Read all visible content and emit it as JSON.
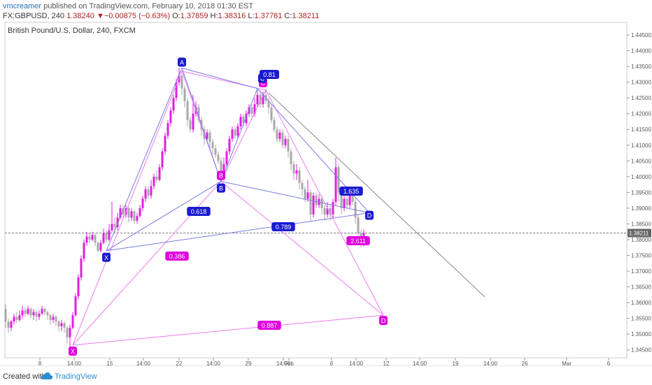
{
  "header": {
    "user": "vmcreamer",
    "published": "published on TradingView.com, February 10, 2018 01:30 EST",
    "symbol": "FX:GBPUSD, 240",
    "last": "1.38240",
    "change": "−0.00875 (−0.63%)",
    "open_label": "O:",
    "open": "1.37859",
    "high_label": "H:",
    "high": "1.38316",
    "low_label": "L:",
    "low": "1.37781",
    "close_label": "C:",
    "close": "1.38211"
  },
  "footer": {
    "created": "Created with",
    "brand": "TradingView"
  },
  "colors": {
    "bull": "#e01ee0",
    "bear": "#a8a8a8",
    "blue": "#1a1ad2",
    "pink": "#e000e0",
    "axis_text": "#555555",
    "grid": "#eeeeee"
  },
  "chart_data": {
    "type": "candlestick",
    "title": "British Pound/U.S. Dollar, 240, FXCM",
    "ylim": [
      1.3425,
      1.449
    ],
    "y_ticks": [
      "1.44500",
      "1.44000",
      "1.43500",
      "1.43000",
      "1.42500",
      "1.42000",
      "1.41500",
      "1.41000",
      "1.40500",
      "1.40000",
      "1.39500",
      "1.39000",
      "1.38500",
      "1.38000",
      "1.37500",
      "1.37000",
      "1.36500",
      "1.36000",
      "1.35500",
      "1.35000",
      "1.34500"
    ],
    "x_ticks": [
      "8",
      "14:00",
      "15",
      "14:00",
      "22",
      "14:00",
      "29",
      "14:00",
      "Feb",
      "6",
      "14:00",
      "12",
      "14:00",
      "19",
      "14:00",
      "26",
      "Mar",
      "6"
    ],
    "current_price": "1.38211",
    "candles": [
      {
        "o": 1.358,
        "c": 1.354,
        "h": 1.3595,
        "l": 1.352
      },
      {
        "o": 1.354,
        "c": 1.352,
        "h": 1.355,
        "l": 1.3505
      },
      {
        "o": 1.352,
        "c": 1.354,
        "h": 1.3545,
        "l": 1.351
      },
      {
        "o": 1.354,
        "c": 1.3555,
        "h": 1.3565,
        "l": 1.353
      },
      {
        "o": 1.3555,
        "c": 1.3545,
        "h": 1.357,
        "l": 1.3535
      },
      {
        "o": 1.3545,
        "c": 1.356,
        "h": 1.3575,
        "l": 1.354
      },
      {
        "o": 1.356,
        "c": 1.3575,
        "h": 1.359,
        "l": 1.355
      },
      {
        "o": 1.3575,
        "c": 1.3565,
        "h": 1.3585,
        "l": 1.3555
      },
      {
        "o": 1.3565,
        "c": 1.358,
        "h": 1.359,
        "l": 1.356
      },
      {
        "o": 1.358,
        "c": 1.356,
        "h": 1.3585,
        "l": 1.355
      },
      {
        "o": 1.356,
        "c": 1.357,
        "h": 1.358,
        "l": 1.3545
      },
      {
        "o": 1.357,
        "c": 1.3555,
        "h": 1.3575,
        "l": 1.354
      },
      {
        "o": 1.3555,
        "c": 1.3565,
        "h": 1.3575,
        "l": 1.3545
      },
      {
        "o": 1.3565,
        "c": 1.358,
        "h": 1.359,
        "l": 1.356
      },
      {
        "o": 1.358,
        "c": 1.357,
        "h": 1.3585,
        "l": 1.356
      },
      {
        "o": 1.357,
        "c": 1.356,
        "h": 1.3575,
        "l": 1.3545
      },
      {
        "o": 1.356,
        "c": 1.3545,
        "h": 1.3565,
        "l": 1.353
      },
      {
        "o": 1.3545,
        "c": 1.3555,
        "h": 1.3565,
        "l": 1.3535
      },
      {
        "o": 1.3555,
        "c": 1.354,
        "h": 1.356,
        "l": 1.3525
      },
      {
        "o": 1.354,
        "c": 1.3525,
        "h": 1.3545,
        "l": 1.351
      },
      {
        "o": 1.3525,
        "c": 1.3535,
        "h": 1.3545,
        "l": 1.351
      },
      {
        "o": 1.3535,
        "c": 1.352,
        "h": 1.354,
        "l": 1.3505
      },
      {
        "o": 1.352,
        "c": 1.349,
        "h": 1.3525,
        "l": 1.347
      },
      {
        "o": 1.349,
        "c": 1.352,
        "h": 1.353,
        "l": 1.346
      },
      {
        "o": 1.352,
        "c": 1.356,
        "h": 1.357,
        "l": 1.3515
      },
      {
        "o": 1.356,
        "c": 1.362,
        "h": 1.363,
        "l": 1.3555
      },
      {
        "o": 1.362,
        "c": 1.368,
        "h": 1.369,
        "l": 1.361
      },
      {
        "o": 1.368,
        "c": 1.374,
        "h": 1.375,
        "l": 1.367
      },
      {
        "o": 1.374,
        "c": 1.379,
        "h": 1.38,
        "l": 1.373
      },
      {
        "o": 1.379,
        "c": 1.381,
        "h": 1.3825,
        "l": 1.378
      },
      {
        "o": 1.381,
        "c": 1.38,
        "h": 1.382,
        "l": 1.379
      },
      {
        "o": 1.38,
        "c": 1.3815,
        "h": 1.3825,
        "l": 1.3795
      },
      {
        "o": 1.3815,
        "c": 1.379,
        "h": 1.382,
        "l": 1.378
      },
      {
        "o": 1.379,
        "c": 1.3765,
        "h": 1.3795,
        "l": 1.376
      },
      {
        "o": 1.3765,
        "c": 1.379,
        "h": 1.38,
        "l": 1.376
      },
      {
        "o": 1.379,
        "c": 1.382,
        "h": 1.3835,
        "l": 1.3785
      },
      {
        "o": 1.382,
        "c": 1.38,
        "h": 1.383,
        "l": 1.379
      },
      {
        "o": 1.38,
        "c": 1.383,
        "h": 1.385,
        "l": 1.3795
      },
      {
        "o": 1.383,
        "c": 1.385,
        "h": 1.392,
        "l": 1.3825
      },
      {
        "o": 1.385,
        "c": 1.384,
        "h": 1.387,
        "l": 1.382
      },
      {
        "o": 1.384,
        "c": 1.387,
        "h": 1.3885,
        "l": 1.383
      },
      {
        "o": 1.387,
        "c": 1.39,
        "h": 1.391,
        "l": 1.3865
      },
      {
        "o": 1.39,
        "c": 1.388,
        "h": 1.391,
        "l": 1.387
      },
      {
        "o": 1.388,
        "c": 1.39,
        "h": 1.391,
        "l": 1.387
      },
      {
        "o": 1.39,
        "c": 1.387,
        "h": 1.3905,
        "l": 1.3855
      },
      {
        "o": 1.387,
        "c": 1.389,
        "h": 1.39,
        "l": 1.386
      },
      {
        "o": 1.389,
        "c": 1.386,
        "h": 1.3895,
        "l": 1.385
      },
      {
        "o": 1.386,
        "c": 1.3875,
        "h": 1.3885,
        "l": 1.385
      },
      {
        "o": 1.3875,
        "c": 1.39,
        "h": 1.391,
        "l": 1.387
      },
      {
        "o": 1.39,
        "c": 1.393,
        "h": 1.394,
        "l": 1.389
      },
      {
        "o": 1.393,
        "c": 1.396,
        "h": 1.397,
        "l": 1.392
      },
      {
        "o": 1.396,
        "c": 1.394,
        "h": 1.397,
        "l": 1.393
      },
      {
        "o": 1.394,
        "c": 1.397,
        "h": 1.399,
        "l": 1.393
      },
      {
        "o": 1.397,
        "c": 1.4,
        "h": 1.401,
        "l": 1.396
      },
      {
        "o": 1.4,
        "c": 1.399,
        "h": 1.402,
        "l": 1.398
      },
      {
        "o": 1.399,
        "c": 1.403,
        "h": 1.404,
        "l": 1.3985
      },
      {
        "o": 1.403,
        "c": 1.408,
        "h": 1.409,
        "l": 1.402
      },
      {
        "o": 1.408,
        "c": 1.413,
        "h": 1.414,
        "l": 1.407
      },
      {
        "o": 1.413,
        "c": 1.417,
        "h": 1.418,
        "l": 1.412
      },
      {
        "o": 1.417,
        "c": 1.421,
        "h": 1.422,
        "l": 1.416
      },
      {
        "o": 1.421,
        "c": 1.425,
        "h": 1.426,
        "l": 1.42
      },
      {
        "o": 1.425,
        "c": 1.43,
        "h": 1.431,
        "l": 1.424
      },
      {
        "o": 1.43,
        "c": 1.432,
        "h": 1.4345,
        "l": 1.429
      },
      {
        "o": 1.432,
        "c": 1.428,
        "h": 1.4325,
        "l": 1.426
      },
      {
        "o": 1.428,
        "c": 1.424,
        "h": 1.429,
        "l": 1.422
      },
      {
        "o": 1.424,
        "c": 1.418,
        "h": 1.425,
        "l": 1.416
      },
      {
        "o": 1.418,
        "c": 1.415,
        "h": 1.419,
        "l": 1.414
      },
      {
        "o": 1.415,
        "c": 1.42,
        "h": 1.426,
        "l": 1.414
      },
      {
        "o": 1.42,
        "c": 1.422,
        "h": 1.424,
        "l": 1.419
      },
      {
        "o": 1.422,
        "c": 1.418,
        "h": 1.423,
        "l": 1.417
      },
      {
        "o": 1.418,
        "c": 1.415,
        "h": 1.419,
        "l": 1.413
      },
      {
        "o": 1.415,
        "c": 1.412,
        "h": 1.416,
        "l": 1.41
      },
      {
        "o": 1.412,
        "c": 1.414,
        "h": 1.415,
        "l": 1.411
      },
      {
        "o": 1.414,
        "c": 1.411,
        "h": 1.415,
        "l": 1.409
      },
      {
        "o": 1.411,
        "c": 1.409,
        "h": 1.412,
        "l": 1.407
      },
      {
        "o": 1.409,
        "c": 1.407,
        "h": 1.41,
        "l": 1.406
      },
      {
        "o": 1.407,
        "c": 1.405,
        "h": 1.408,
        "l": 1.404
      },
      {
        "o": 1.405,
        "c": 1.401,
        "h": 1.406,
        "l": 1.399
      },
      {
        "o": 1.401,
        "c": 1.404,
        "h": 1.406,
        "l": 1.4
      },
      {
        "o": 1.404,
        "c": 1.408,
        "h": 1.409,
        "l": 1.403
      },
      {
        "o": 1.408,
        "c": 1.412,
        "h": 1.413,
        "l": 1.407
      },
      {
        "o": 1.412,
        "c": 1.415,
        "h": 1.416,
        "l": 1.411
      },
      {
        "o": 1.415,
        "c": 1.413,
        "h": 1.416,
        "l": 1.412
      },
      {
        "o": 1.413,
        "c": 1.416,
        "h": 1.417,
        "l": 1.412
      },
      {
        "o": 1.416,
        "c": 1.419,
        "h": 1.42,
        "l": 1.415
      },
      {
        "o": 1.419,
        "c": 1.417,
        "h": 1.42,
        "l": 1.416
      },
      {
        "o": 1.417,
        "c": 1.42,
        "h": 1.421,
        "l": 1.416
      },
      {
        "o": 1.42,
        "c": 1.422,
        "h": 1.423,
        "l": 1.419
      },
      {
        "o": 1.422,
        "c": 1.42,
        "h": 1.423,
        "l": 1.419
      },
      {
        "o": 1.42,
        "c": 1.423,
        "h": 1.425,
        "l": 1.419
      },
      {
        "o": 1.423,
        "c": 1.426,
        "h": 1.4275,
        "l": 1.422
      },
      {
        "o": 1.426,
        "c": 1.423,
        "h": 1.4275,
        "l": 1.422
      },
      {
        "o": 1.423,
        "c": 1.426,
        "h": 1.427,
        "l": 1.422
      },
      {
        "o": 1.426,
        "c": 1.424,
        "h": 1.428,
        "l": 1.423
      },
      {
        "o": 1.424,
        "c": 1.422,
        "h": 1.425,
        "l": 1.42
      },
      {
        "o": 1.422,
        "c": 1.418,
        "h": 1.423,
        "l": 1.417
      },
      {
        "o": 1.418,
        "c": 1.415,
        "h": 1.419,
        "l": 1.414
      },
      {
        "o": 1.415,
        "c": 1.412,
        "h": 1.416,
        "l": 1.411
      },
      {
        "o": 1.412,
        "c": 1.414,
        "h": 1.415,
        "l": 1.411
      },
      {
        "o": 1.414,
        "c": 1.41,
        "h": 1.415,
        "l": 1.409
      },
      {
        "o": 1.41,
        "c": 1.412,
        "h": 1.413,
        "l": 1.409
      },
      {
        "o": 1.412,
        "c": 1.408,
        "h": 1.413,
        "l": 1.406
      },
      {
        "o": 1.408,
        "c": 1.404,
        "h": 1.409,
        "l": 1.402
      },
      {
        "o": 1.404,
        "c": 1.401,
        "h": 1.405,
        "l": 1.399
      },
      {
        "o": 1.401,
        "c": 1.402,
        "h": 1.404,
        "l": 1.399
      },
      {
        "o": 1.402,
        "c": 1.398,
        "h": 1.403,
        "l": 1.396
      },
      {
        "o": 1.398,
        "c": 1.396,
        "h": 1.399,
        "l": 1.394
      },
      {
        "o": 1.396,
        "c": 1.393,
        "h": 1.397,
        "l": 1.392
      },
      {
        "o": 1.393,
        "c": 1.395,
        "h": 1.399,
        "l": 1.392
      },
      {
        "o": 1.395,
        "c": 1.388,
        "h": 1.396,
        "l": 1.386
      },
      {
        "o": 1.388,
        "c": 1.394,
        "h": 1.395,
        "l": 1.387
      },
      {
        "o": 1.394,
        "c": 1.391,
        "h": 1.395,
        "l": 1.39
      },
      {
        "o": 1.391,
        "c": 1.393,
        "h": 1.3945,
        "l": 1.39
      },
      {
        "o": 1.393,
        "c": 1.39,
        "h": 1.394,
        "l": 1.388
      },
      {
        "o": 1.39,
        "c": 1.388,
        "h": 1.391,
        "l": 1.386
      },
      {
        "o": 1.388,
        "c": 1.39,
        "h": 1.392,
        "l": 1.387
      },
      {
        "o": 1.39,
        "c": 1.388,
        "h": 1.391,
        "l": 1.386
      },
      {
        "o": 1.388,
        "c": 1.392,
        "h": 1.393,
        "l": 1.387
      },
      {
        "o": 1.392,
        "c": 1.403,
        "h": 1.406,
        "l": 1.391
      },
      {
        "o": 1.403,
        "c": 1.395,
        "h": 1.404,
        "l": 1.392
      },
      {
        "o": 1.395,
        "c": 1.39,
        "h": 1.396,
        "l": 1.388
      },
      {
        "o": 1.39,
        "c": 1.393,
        "h": 1.395,
        "l": 1.389
      },
      {
        "o": 1.393,
        "c": 1.391,
        "h": 1.394,
        "l": 1.39
      },
      {
        "o": 1.391,
        "c": 1.3945,
        "h": 1.396,
        "l": 1.39
      },
      {
        "o": 1.3945,
        "c": 1.392,
        "h": 1.396,
        "l": 1.391
      },
      {
        "o": 1.392,
        "c": 1.387,
        "h": 1.393,
        "l": 1.385
      },
      {
        "o": 1.387,
        "c": 1.382,
        "h": 1.388,
        "l": 1.38
      },
      {
        "o": 1.382,
        "c": 1.379,
        "h": 1.383,
        "l": 1.3775
      },
      {
        "o": 1.3786,
        "c": 1.3821,
        "h": 1.3832,
        "l": 1.3778
      }
    ],
    "points": {
      "X": {
        "i": 24,
        "y": 1.3465
      },
      "A": {
        "i": 63,
        "y": 1.4335
      },
      "B": {
        "i": 77,
        "y": 1.3985
      },
      "C": {
        "i": 93,
        "y": 1.4275
      },
      "D": {
        "i": 135,
        "y": 1.356
      }
    },
    "points2": {
      "X": {
        "i": 36,
        "y": 1.3765
      },
      "A": {
        "i": 63,
        "y": 1.4345
      },
      "B": {
        "i": 77,
        "y": 1.3985
      },
      "C": {
        "i": 90,
        "y": 1.428
      },
      "D": {
        "i": 130,
        "y": 1.3885
      }
    },
    "ratios_blue": [
      {
        "label": "0.618"
      },
      {
        "label": "0.81"
      },
      {
        "label": "1.635"
      },
      {
        "label": "0.789"
      }
    ],
    "ratios_pink": [
      {
        "label": "0.386"
      },
      {
        "label": "0.887"
      },
      {
        "label": "2.611"
      }
    ],
    "point_labels": [
      "X",
      "A",
      "B",
      "C",
      "D"
    ]
  }
}
